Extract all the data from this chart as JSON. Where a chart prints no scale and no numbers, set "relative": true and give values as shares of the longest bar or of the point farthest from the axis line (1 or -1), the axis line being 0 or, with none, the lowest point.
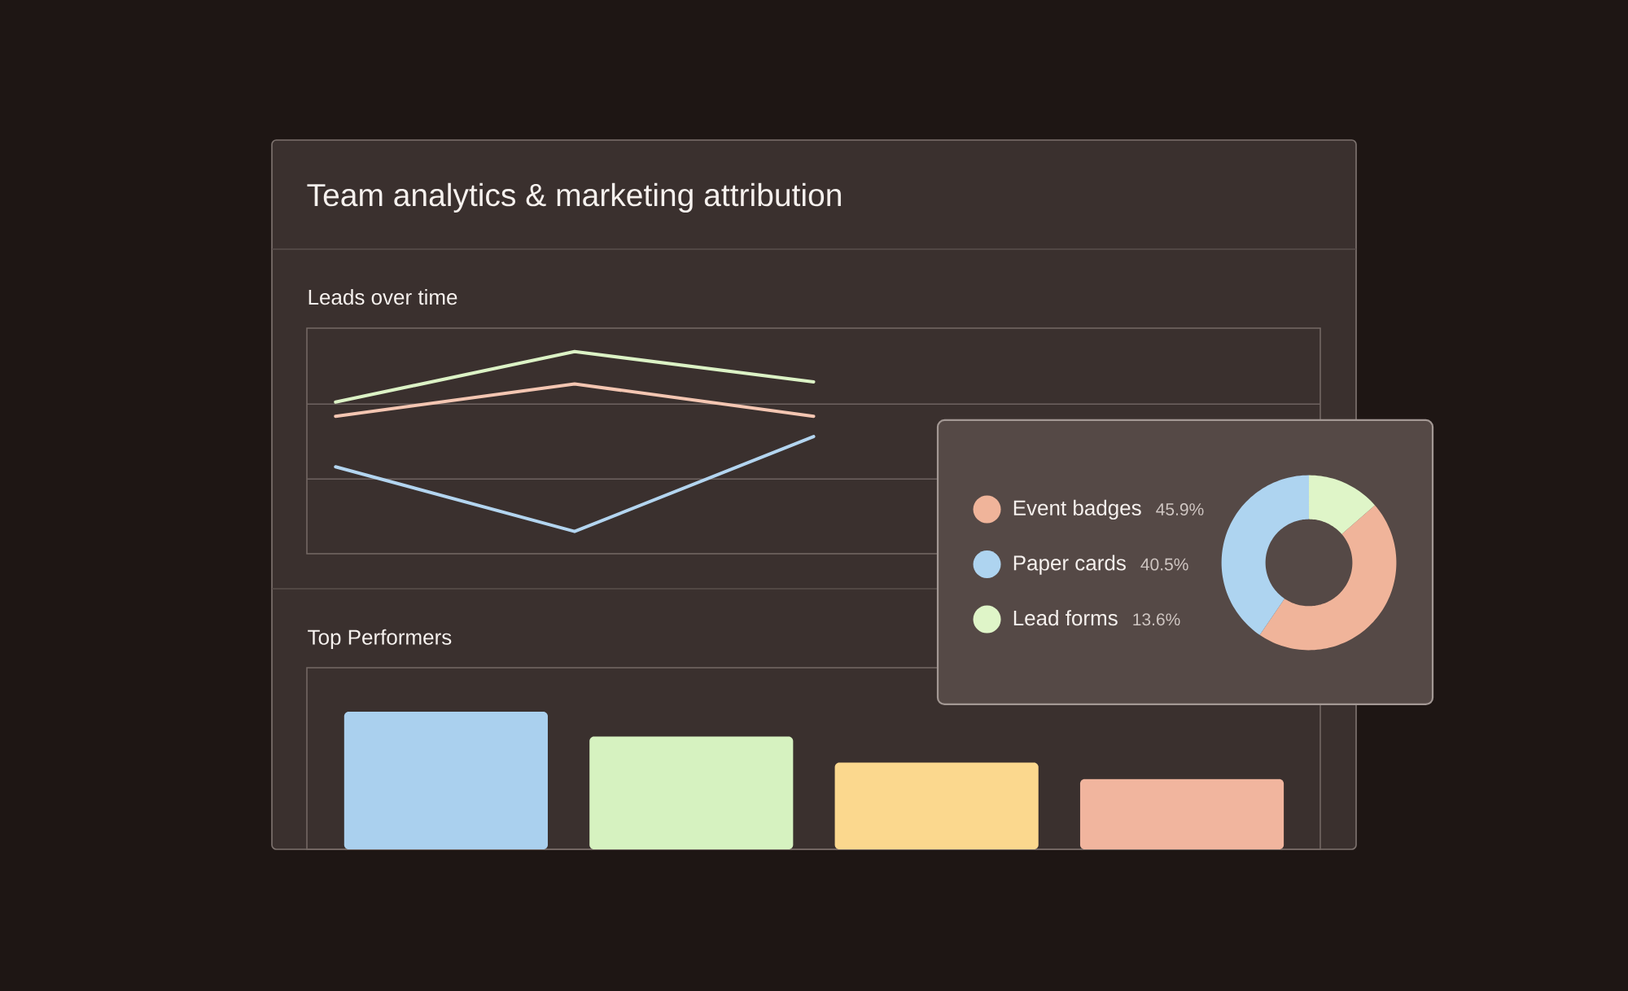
{
  "chart_data": [
    {
      "type": "other",
      "title": "Team analytics & marketing attribution"
    },
    {
      "type": "line",
      "title": "Leads over time",
      "categories": [
        null,
        null,
        null,
        null,
        null
      ],
      "relative": true,
      "ref_lines": [
        {
          "axis": "y",
          "value": 0.37,
          "color": "#6e6360"
        },
        {
          "axis": "y",
          "value": 0.74,
          "color": "#6e6360"
        }
      ],
      "series": [
        {
          "color": "#dcf3c6",
          "values": [
            0.75,
            1.0,
            0.85,
            null,
            null
          ]
        },
        {
          "color": "#f4c6b2",
          "values": [
            0.68,
            0.84,
            0.68,
            null,
            null
          ]
        },
        {
          "color": "#b3d5f0",
          "values": [
            0.43,
            0.11,
            0.58,
            null,
            null
          ]
        }
      ]
    },
    {
      "type": "bar",
      "title": "Top Performers",
      "categories": [
        null,
        null,
        null,
        null
      ],
      "relative": true,
      "values": [
        1,
        0.82,
        0.63,
        0.51
      ],
      "colors": [
        "#aad0ee",
        "#d6f2c0",
        "#fbd88e",
        "#f1b59e"
      ]
    },
    {
      "type": "donut",
      "categories": [
        "Event badges",
        "Paper cards",
        "Lead forms"
      ],
      "values": [
        45.9,
        40.5,
        13.6
      ],
      "value_labels": [
        "45.9%",
        "40.5%",
        "13.6%"
      ],
      "colors": [
        "#f0b49a",
        "#aed4f0",
        "#dff5c8"
      ],
      "legend": "left"
    }
  ]
}
